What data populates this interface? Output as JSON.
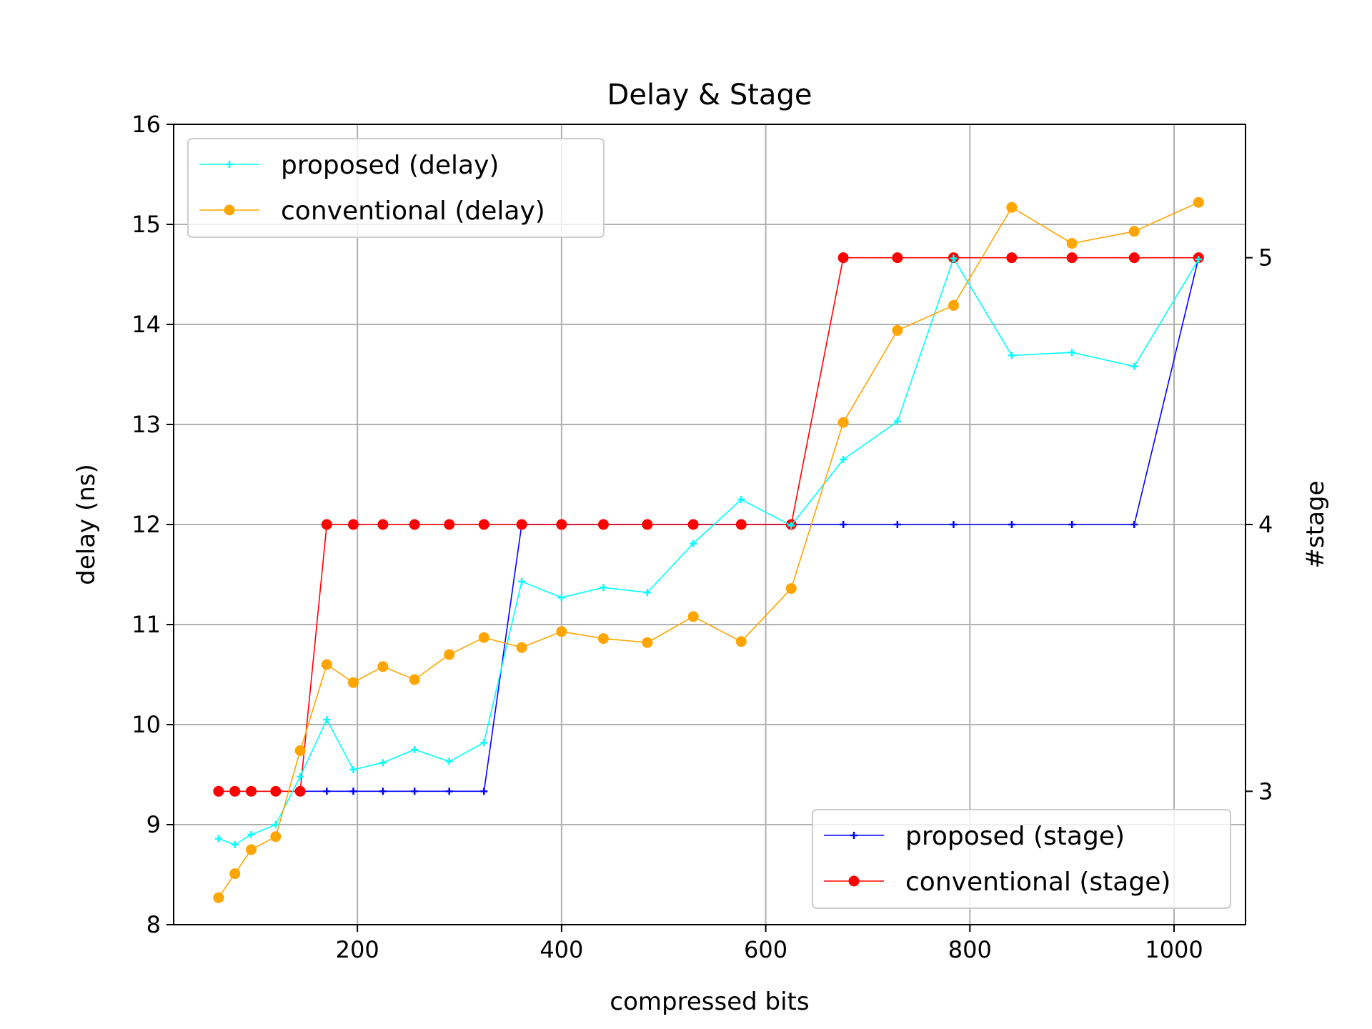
{
  "chart_data": {
    "type": "line",
    "title": "Delay & Stage",
    "xlabel": "compressed bits",
    "ylabel": "delay (ns)",
    "y2label": "#stage",
    "xlim": [
      20,
      1070
    ],
    "ylim": [
      8,
      16
    ],
    "y2lim": [
      2.5,
      5.5
    ],
    "xticks": [
      200,
      400,
      600,
      800,
      1000
    ],
    "yticks": [
      8,
      9,
      10,
      11,
      12,
      13,
      14,
      15,
      16
    ],
    "y2ticks": [
      3,
      4,
      5
    ],
    "grid": true,
    "legend_left": {
      "placement": "upper left",
      "entries": [
        "proposed (delay)",
        "conventional (delay)"
      ]
    },
    "legend_right": {
      "placement": "lower right",
      "entries": [
        "proposed (stage)",
        "conventional (stage)"
      ]
    },
    "series": [
      {
        "name": "proposed (delay)",
        "axis": "left",
        "color": "#00ffff",
        "marker": "plus",
        "x": [
          64,
          80,
          96,
          120,
          144,
          170,
          196,
          225,
          256,
          290,
          324,
          361,
          400,
          441,
          484,
          529,
          576,
          625,
          676,
          729,
          784,
          841,
          900,
          961,
          1024
        ],
        "y": [
          8.86,
          8.8,
          8.9,
          9.0,
          9.48,
          10.05,
          9.55,
          9.62,
          9.75,
          9.63,
          9.82,
          11.43,
          11.27,
          11.37,
          11.32,
          11.81,
          12.25,
          11.99,
          12.65,
          13.03,
          14.66,
          13.69,
          13.72,
          13.58,
          14.65
        ]
      },
      {
        "name": "conventional (delay)",
        "axis": "left",
        "color": "#ffa500",
        "marker": "circle",
        "x": [
          64,
          80,
          96,
          120,
          144,
          170,
          196,
          225,
          256,
          290,
          324,
          361,
          400,
          441,
          484,
          529,
          576,
          625,
          676,
          729,
          784,
          841,
          900,
          961,
          1024
        ],
        "y": [
          8.27,
          8.51,
          8.75,
          8.88,
          9.74,
          10.6,
          10.42,
          10.58,
          10.45,
          10.7,
          10.87,
          10.77,
          10.93,
          10.86,
          10.82,
          11.08,
          10.83,
          11.36,
          13.02,
          13.94,
          14.19,
          15.17,
          14.81,
          14.93,
          15.22
        ]
      },
      {
        "name": "proposed (stage)",
        "axis": "right",
        "color": "#0000ff",
        "marker": "plus",
        "x": [
          64,
          80,
          96,
          120,
          144,
          170,
          196,
          225,
          256,
          290,
          324,
          361,
          400,
          441,
          484,
          529,
          576,
          625,
          676,
          729,
          784,
          841,
          900,
          961,
          1024
        ],
        "y": [
          3,
          3,
          3,
          3,
          3,
          3,
          3,
          3,
          3,
          3,
          3,
          4,
          4,
          4,
          4,
          4,
          4,
          4,
          4,
          4,
          4,
          4,
          4,
          4,
          5
        ]
      },
      {
        "name": "conventional (stage)",
        "axis": "right",
        "color": "#ff0000",
        "marker": "circle",
        "x": [
          64,
          80,
          96,
          120,
          144,
          170,
          196,
          225,
          256,
          290,
          324,
          361,
          400,
          441,
          484,
          529,
          576,
          625,
          676,
          729,
          784,
          841,
          900,
          961,
          1024
        ],
        "y": [
          3,
          3,
          3,
          3,
          3,
          4,
          4,
          4,
          4,
          4,
          4,
          4,
          4,
          4,
          4,
          4,
          4,
          4,
          5,
          5,
          5,
          5,
          5,
          5,
          5
        ]
      }
    ]
  }
}
